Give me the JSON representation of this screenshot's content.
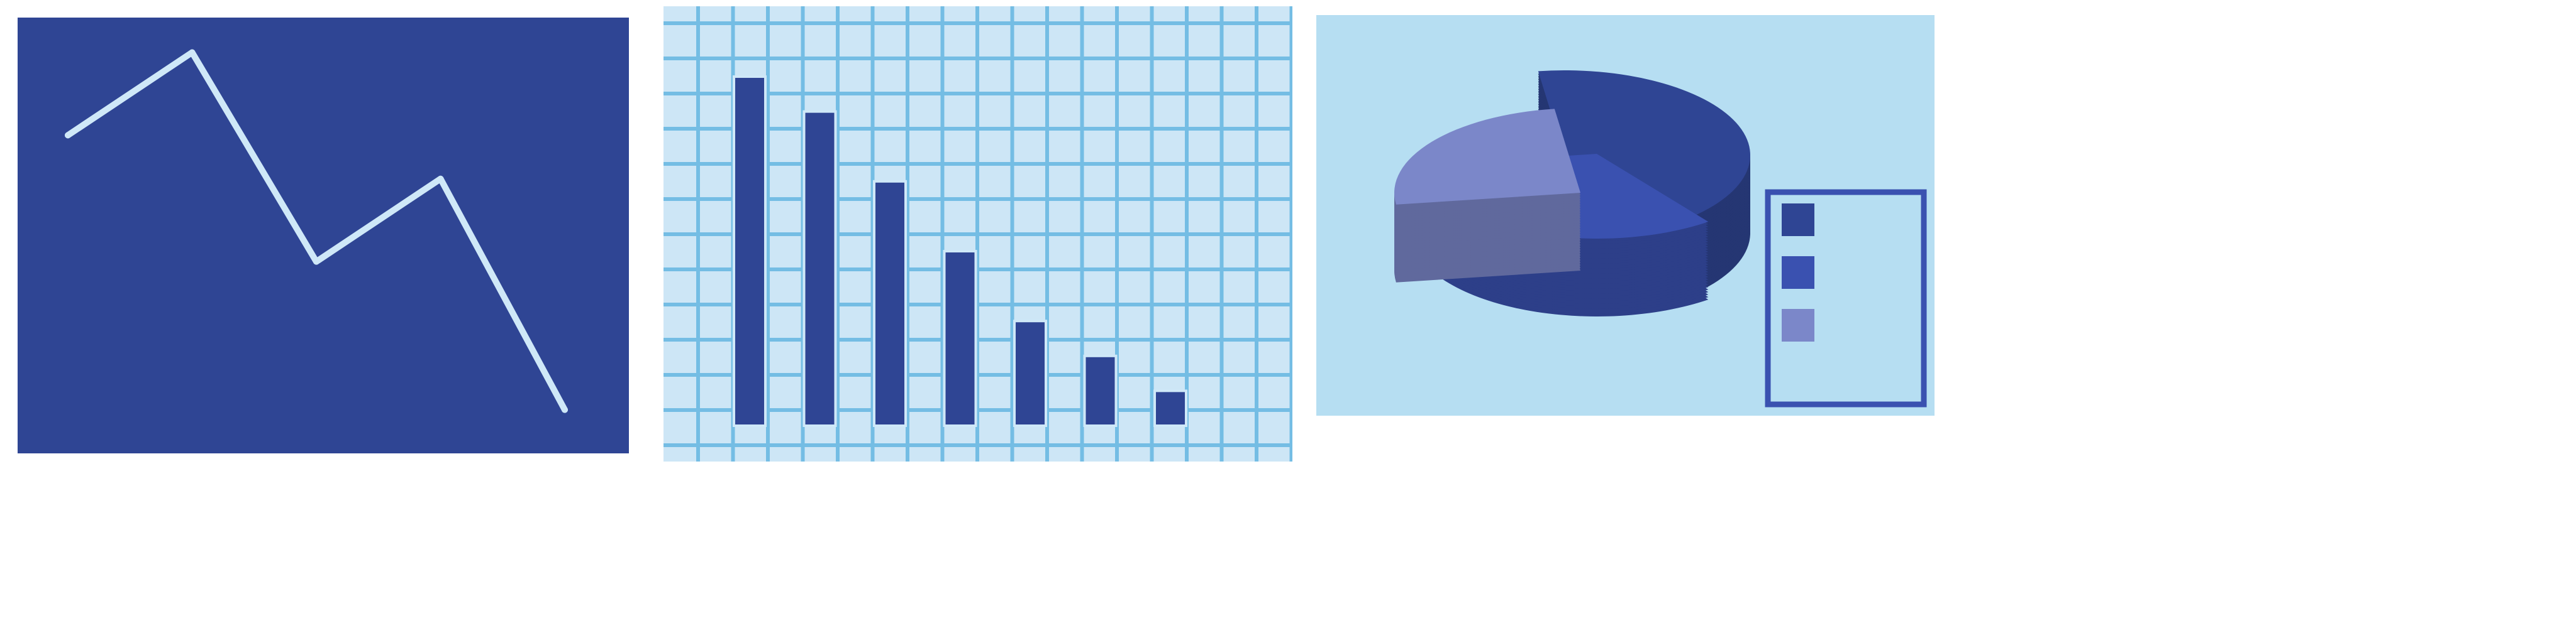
{
  "colors": {
    "dark_blue": "#2f4594",
    "navy": "#223068",
    "light_blue": "#b6def2",
    "grid_bg": "#cde6f6",
    "grid_line": "#74bde4",
    "line_stroke": "#cfe8f8",
    "royal_blue": "#3a51b0",
    "lavender": "#7b87c9",
    "lavender_side": "#6877bd",
    "white": "#ffffff"
  },
  "chart_data": [
    {
      "type": "line",
      "title": "",
      "xlabel": "",
      "ylabel": "",
      "x": [
        1,
        2,
        3,
        4,
        5
      ],
      "values": [
        73,
        92,
        44,
        63,
        10
      ],
      "ylim": [
        0,
        100
      ],
      "grid": false,
      "background": "dark_blue"
    },
    {
      "type": "bar",
      "title": "",
      "xlabel": "",
      "ylabel": "",
      "categories": [
        "",
        "",
        "",
        "",
        "",
        "",
        ""
      ],
      "values": [
        100,
        90,
        70,
        50,
        30,
        20,
        10
      ],
      "ylim": [
        0,
        100
      ],
      "grid": true
    },
    {
      "type": "pie",
      "title": "",
      "values": [
        42,
        33,
        25
      ],
      "colors": [
        "dark_blue",
        "royal_blue",
        "lavender"
      ],
      "legend": {
        "placement": "right",
        "entries": [
          "",
          "",
          ""
        ]
      }
    }
  ]
}
